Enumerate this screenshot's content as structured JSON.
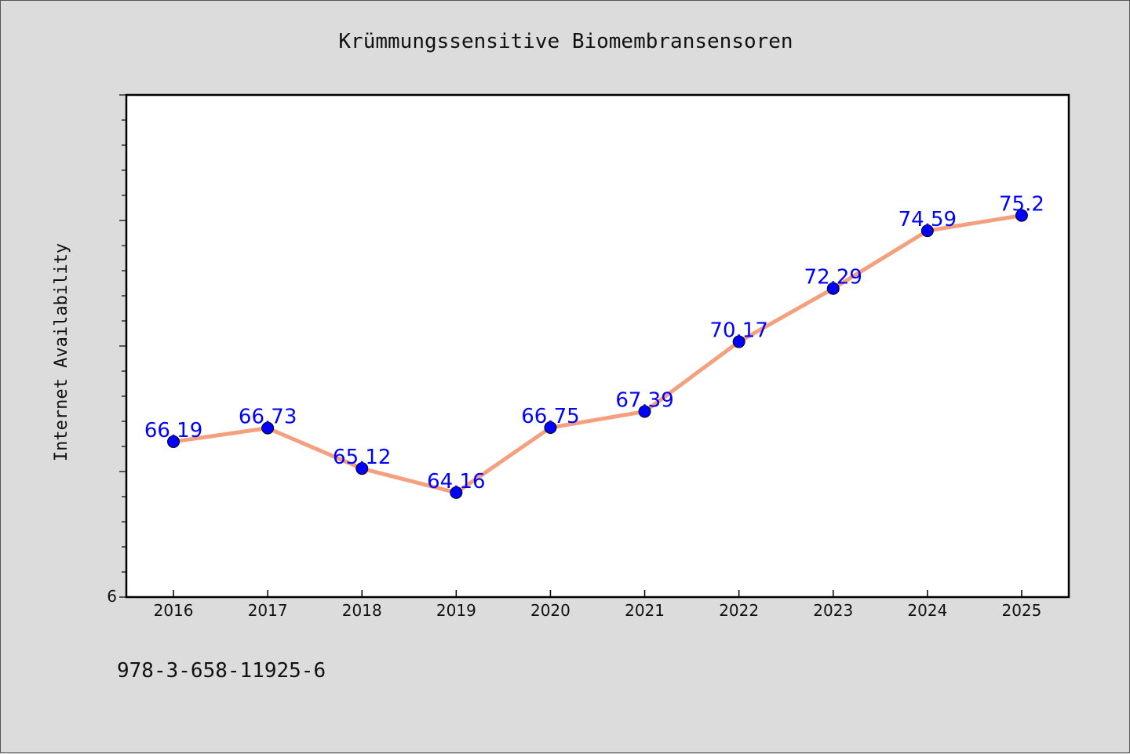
{
  "footer": {
    "isbn": "978-3-658-11925-6"
  },
  "chart_data": {
    "type": "line",
    "title": "Krümmungssensitive Biomembransensoren",
    "xlabel": "",
    "ylabel": "Internet Availability",
    "categories": [
      "2016",
      "2017",
      "2018",
      "2019",
      "2020",
      "2021",
      "2022",
      "2023",
      "2024",
      "2025"
    ],
    "series": [
      {
        "values": [
          66.19,
          66.73,
          65.12,
          64.16,
          66.75,
          67.39,
          70.17,
          72.29,
          74.59,
          75.2
        ],
        "data_labels": [
          "66.19",
          "66.73",
          "65.12",
          "64.16",
          "66.75",
          "67.39",
          "70.17",
          "72.29",
          "74.59",
          "75.2"
        ],
        "line_color": "#f4a07f",
        "marker_color": "#0000ff"
      }
    ],
    "ylim": [
      60,
      80
    ],
    "y_tick_labels": [
      "6"
    ],
    "grid": false,
    "legend": "none",
    "colors": {
      "background": "#dcdcdc",
      "plot_background": "#ffffff",
      "data_label": "#0000ff"
    }
  }
}
